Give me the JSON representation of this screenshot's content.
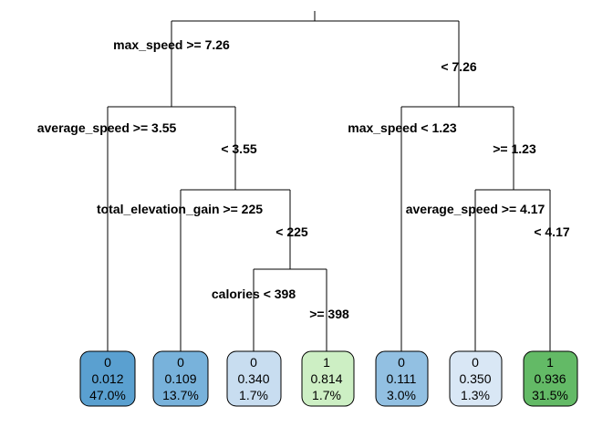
{
  "tree": {
    "splits": [
      {
        "id": "n1",
        "yes": "max_speed >= 7.26",
        "no": "< 7.26"
      },
      {
        "id": "n2",
        "yes": "average_speed >= 3.55",
        "no": "< 3.55"
      },
      {
        "id": "n3",
        "yes": "max_speed < 1.23",
        "no": ">= 1.23"
      },
      {
        "id": "n4",
        "yes": "total_elevation_gain >= 225",
        "no": "< 225"
      },
      {
        "id": "n5",
        "yes": "average_speed >= 4.17",
        "no": "< 4.17"
      },
      {
        "id": "n6",
        "yes": "calories < 398",
        "no": ">= 398"
      }
    ],
    "leaves": [
      {
        "class": "0",
        "prob": "0.012",
        "pct": "47.0%",
        "fill": "#5aa0d0"
      },
      {
        "class": "0",
        "prob": "0.109",
        "pct": "13.7%",
        "fill": "#78b2db"
      },
      {
        "class": "0",
        "prob": "0.340",
        "pct": "1.7%",
        "fill": "#c8ddf0"
      },
      {
        "class": "1",
        "prob": "0.814",
        "pct": "1.7%",
        "fill": "#cdefc4"
      },
      {
        "class": "0",
        "prob": "0.111",
        "pct": "3.0%",
        "fill": "#92c0e2"
      },
      {
        "class": "0",
        "prob": "0.350",
        "pct": "1.3%",
        "fill": "#d9e7f5"
      },
      {
        "class": "1",
        "prob": "0.936",
        "pct": "31.5%",
        "fill": "#63ba66"
      }
    ]
  }
}
